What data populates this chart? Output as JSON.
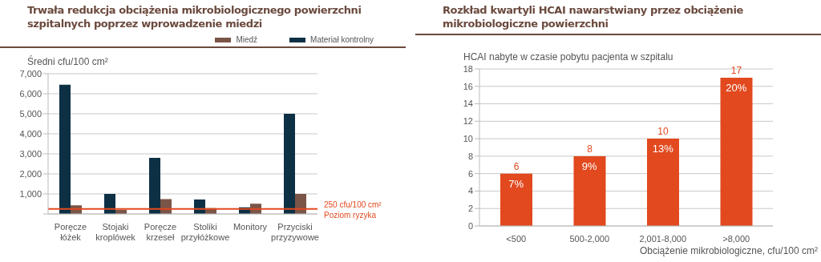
{
  "chart_data": [
    {
      "type": "bar",
      "title": "Trwała redukcja obciążenia mikrobiologicznego powierzchni szpitalnych poprzez wprowadzenie miedzi",
      "ylabel": "Średni cfu/100 cm²",
      "categories": [
        "Poręcze łóżek",
        "Stojaki kroplówek",
        "Poręcze krzeseł",
        "Stoliki przyłóżkowe",
        "Monitory",
        "Przyciski przyzywowe"
      ],
      "series": [
        {
          "name": "Materiał kontrolny",
          "color": "#0d3045",
          "values": [
            6450,
            1000,
            2800,
            720,
            330,
            5000
          ]
        },
        {
          "name": "Miedź",
          "color": "#7a5548",
          "values": [
            430,
            200,
            740,
            290,
            510,
            1000
          ]
        }
      ],
      "ylim": [
        0,
        7000
      ],
      "yticks": [
        {
          "value": 0,
          "label": null
        },
        {
          "value": 1000,
          "label": "1,000"
        },
        {
          "value": 2000,
          "label": "2,000"
        },
        {
          "value": 3000,
          "label": "3,000"
        },
        {
          "value": 4000,
          "label": "4,000"
        },
        {
          "value": 5000,
          "label": "5,000"
        },
        {
          "value": 6000,
          "label": "6,000"
        },
        {
          "value": 7000,
          "label": "7,000"
        }
      ],
      "grid": "y",
      "legend": "top right",
      "ref_lines": [
        {
          "axis": "y",
          "value": 250,
          "label": "250 cfu/100 cm²",
          "color": "#e2491f"
        }
      ],
      "annotations": [
        "Poziom ryzyka"
      ]
    },
    {
      "type": "bar",
      "title": "Rozkład kwartyli HCAI nawarstwiany przez obciążenie  mikrobiologiczne powierzchni",
      "ylabel": "HCAI nabyte w czasie pobytu pacjenta w szpitalu",
      "xlabel": "Obciążenie mikrobiologiczne, cfu/100 cm²",
      "categories": [
        "<500",
        "500-2,000",
        "2,001-8,000",
        ">8,000"
      ],
      "values": [
        6,
        8,
        10,
        17
      ],
      "color": "#e2491f",
      "ylim": [
        0,
        18
      ],
      "yticks": [
        0,
        2,
        4,
        6,
        8,
        10,
        12,
        14,
        16,
        18
      ],
      "grid": "y",
      "data_labels": true,
      "annotations": [
        {
          "text": "7%",
          "x": "<500",
          "y": 6
        },
        {
          "text": "9%",
          "x": "500-2,000",
          "y": 8
        },
        {
          "text": "13%",
          "x": "2,001-8,000",
          "y": 10
        },
        {
          "text": "20%",
          "x": ">8,000",
          "y": 17
        }
      ]
    }
  ]
}
